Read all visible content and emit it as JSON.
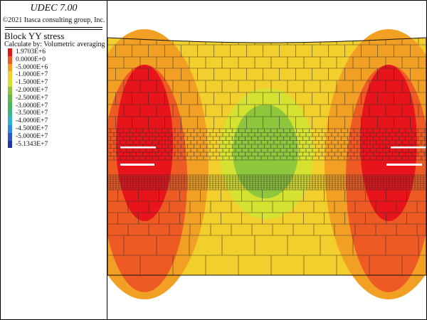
{
  "app": {
    "title": "UDEC 7.00",
    "copyright": "©2021 Itasca consulting group, Inc."
  },
  "plot": {
    "title": "Block YY stress",
    "calc_method": "Calculate by: Volumetric averaging"
  },
  "legend": [
    {
      "label": "1.9703E+6",
      "color": "#e8141c"
    },
    {
      "label": "0.0000E+0",
      "color": "#ee5a24"
    },
    {
      "label": "-5.0000E+6",
      "color": "#f2a024"
    },
    {
      "label": "-1.0000E+7",
      "color": "#f2cf2c"
    },
    {
      "label": "-1.5000E+7",
      "color": "#d6e232"
    },
    {
      "label": "-2.0000E+7",
      "color": "#8ec63c"
    },
    {
      "label": "-2.5000E+7",
      "color": "#62b848"
    },
    {
      "label": "-3.0000E+7",
      "color": "#46b45c"
    },
    {
      "label": "-3.5000E+7",
      "color": "#3cb48c"
    },
    {
      "label": "-4.0000E+7",
      "color": "#2eb4d2"
    },
    {
      "label": "-4.5000E+7",
      "color": "#2c8ee0"
    },
    {
      "label": "-5.0000E+7",
      "color": "#2c58cc"
    },
    {
      "label": "-5.1343E+7",
      "color": "#2434a8"
    }
  ],
  "model_colors": {
    "red": "#e8141c",
    "orange_red": "#ee5a24",
    "orange": "#f2a024",
    "yellow": "#f2cf2c",
    "yellow_green": "#d6e232",
    "green": "#8ec63c"
  }
}
